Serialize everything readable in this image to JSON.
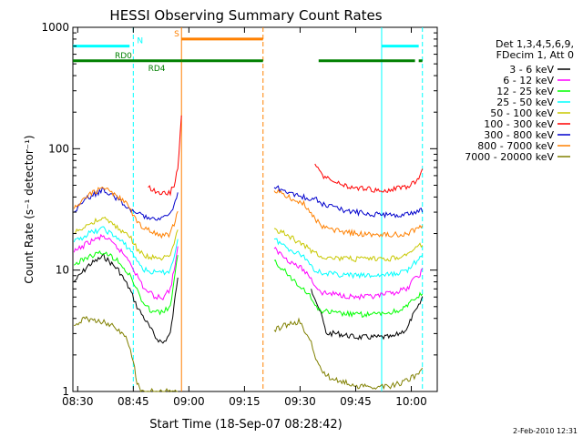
{
  "chart_data": {
    "type": "line",
    "title": "HESSI Observing Summary Count Rates",
    "xlabel": "Start Time (18-Sep-07 08:28:42)",
    "ylabel": "Count Rate (s⁻¹ detector⁻¹)",
    "y_scale": "log",
    "ylim": [
      1,
      1000
    ],
    "xlim": [
      "08:28:42",
      "10:07:00"
    ],
    "x_ticks": [
      "08:30",
      "08:45",
      "09:00",
      "09:15",
      "09:30",
      "09:45",
      "10:00"
    ],
    "y_ticks": [
      "1",
      "10",
      "100",
      "1000"
    ],
    "legend": {
      "placement": "right",
      "header": [
        "Det 1,3,4,5,6,9,",
        "FDecim 1, Att 0"
      ],
      "entries": [
        {
          "label": "3 - 6 keV",
          "color": "#000000"
        },
        {
          "label": "6 - 12 keV",
          "color": "#ff00ff"
        },
        {
          "label": "12 - 25 keV",
          "color": "#00ff00"
        },
        {
          "label": "25 - 50 keV",
          "color": "#00ffff"
        },
        {
          "label": "50 - 100 keV",
          "color": "#c8c800"
        },
        {
          "label": "100 - 300 keV",
          "color": "#ff0000"
        },
        {
          "label": "300 - 800 keV",
          "color": "#0000cc"
        },
        {
          "label": "800 - 7000 keV",
          "color": "#ff8000"
        },
        {
          "label": "7000 - 20000 keV",
          "color": "#808000"
        }
      ]
    },
    "series": [
      {
        "name": "3 - 6 keV",
        "color": "#000000",
        "x": [
          "08:29",
          "08:33",
          "08:37",
          "08:41",
          "08:44",
          "08:46",
          "08:48",
          "08:51",
          "08:53",
          "08:55",
          "08:56",
          "08:57",
          "09:33",
          "09:34",
          "09:36",
          "09:37",
          "09:40",
          "09:45",
          "09:50",
          "09:55",
          "09:59",
          "10:00",
          "10:02",
          "10:03"
        ],
        "y": [
          8,
          11,
          13,
          10,
          7,
          5,
          4,
          2.8,
          2.5,
          3,
          5,
          9,
          7,
          6,
          4,
          3,
          3,
          2.8,
          2.8,
          2.8,
          3.3,
          4,
          5,
          6
        ]
      },
      {
        "name": "6 - 12 keV",
        "color": "#ff00ff",
        "x": [
          "08:29",
          "08:33",
          "08:37",
          "08:41",
          "08:44",
          "08:46",
          "08:48",
          "08:51",
          "08:53",
          "08:55",
          "08:56",
          "08:57",
          "09:23",
          "09:27",
          "09:31",
          "09:33",
          "09:34",
          "09:36",
          "09:40",
          "09:45",
          "09:50",
          "09:55",
          "09:59",
          "10:00",
          "10:02",
          "10:03"
        ],
        "y": [
          14,
          17,
          19,
          15,
          12,
          9,
          7,
          6,
          6,
          7,
          10,
          15,
          15,
          12,
          10,
          8.5,
          7.5,
          6.5,
          6.3,
          6,
          6,
          6.5,
          7,
          8,
          9,
          10
        ]
      },
      {
        "name": "12 - 25 keV",
        "color": "#00ff00",
        "x": [
          "08:29",
          "08:33",
          "08:37",
          "08:41",
          "08:44",
          "08:46",
          "08:48",
          "08:51",
          "08:53",
          "08:55",
          "08:56",
          "08:57",
          "09:23",
          "09:27",
          "09:31",
          "09:33",
          "09:34",
          "09:36",
          "09:40",
          "09:45",
          "09:50",
          "09:55",
          "09:59",
          "10:00",
          "10:02",
          "10:03"
        ],
        "y": [
          11,
          13,
          14,
          12,
          9,
          7,
          5,
          4.5,
          4.5,
          5,
          8,
          13,
          12,
          9,
          7,
          6,
          5,
          4.6,
          4.4,
          4.3,
          4.3,
          4.5,
          5,
          5.5,
          6,
          6.5
        ]
      },
      {
        "name": "25 - 50 keV",
        "color": "#00ffff",
        "x": [
          "08:29",
          "08:33",
          "08:37",
          "08:41",
          "08:44",
          "08:46",
          "08:48",
          "08:51",
          "08:53",
          "08:55",
          "08:56",
          "08:57",
          "09:23",
          "09:27",
          "09:31",
          "09:33",
          "09:34",
          "09:36",
          "09:40",
          "09:45",
          "09:50",
          "09:55",
          "09:59",
          "10:00",
          "10:02",
          "10:03"
        ],
        "y": [
          17,
          20,
          22,
          18,
          15,
          12,
          10,
          9.5,
          9.5,
          10,
          13,
          18,
          18,
          15,
          13,
          11,
          10,
          9.5,
          9.2,
          9,
          9,
          9.2,
          10,
          11,
          12,
          13
        ]
      },
      {
        "name": "50 - 100 keV",
        "color": "#c8c800",
        "x": [
          "08:29",
          "08:33",
          "08:37",
          "08:41",
          "08:44",
          "08:46",
          "08:48",
          "08:51",
          "08:53",
          "08:55",
          "08:56",
          "08:57",
          "09:23",
          "09:27",
          "09:31",
          "09:33",
          "09:34",
          "09:36",
          "09:40",
          "09:45",
          "09:50",
          "09:55",
          "09:59",
          "10:00",
          "10:02",
          "10:03"
        ],
        "y": [
          20,
          24,
          27,
          22,
          19,
          15,
          13,
          12.5,
          12.5,
          13,
          16,
          22,
          22,
          19,
          16,
          14.5,
          14,
          13,
          12.5,
          12.3,
          12.3,
          12.5,
          13.5,
          14.5,
          15.5,
          16.5
        ]
      },
      {
        "name": "100 - 300 keV",
        "color": "#ff0000",
        "x": [
          "08:49",
          "08:51",
          "08:53",
          "08:55",
          "08:56",
          "08:57",
          "08:58",
          "09:34",
          "09:36",
          "09:40",
          "09:45",
          "09:50",
          "09:55",
          "09:59",
          "10:01",
          "10:02",
          "10:03"
        ],
        "y": [
          48,
          45,
          43,
          44,
          50,
          70,
          180,
          75,
          60,
          52,
          47,
          46,
          46,
          49,
          53,
          58,
          65
        ]
      },
      {
        "name": "300 - 800 keV",
        "color": "#0000cc",
        "x": [
          "08:29",
          "08:33",
          "08:37",
          "08:41",
          "08:44",
          "08:46",
          "08:48",
          "08:51",
          "08:53",
          "08:55",
          "08:56",
          "08:57",
          "09:23",
          "09:27",
          "09:31",
          "09:33",
          "09:34",
          "09:36",
          "09:40",
          "09:45",
          "09:50",
          "09:55",
          "09:59",
          "10:00",
          "10:02",
          "10:03"
        ],
        "y": [
          30,
          40,
          46,
          38,
          32,
          29,
          28,
          27,
          27.5,
          29,
          34,
          42,
          48,
          44,
          40,
          36,
          40,
          35,
          32,
          30,
          29,
          28.5,
          29,
          30,
          30.5,
          31
        ]
      },
      {
        "name": "800 - 7000 keV",
        "color": "#ff8000",
        "x": [
          "08:29",
          "08:33",
          "08:37",
          "08:41",
          "08:44",
          "08:46",
          "08:48",
          "08:51",
          "08:53",
          "08:55",
          "08:56",
          "08:57",
          "09:23",
          "09:27",
          "09:31",
          "09:33",
          "09:34",
          "09:36",
          "09:40",
          "09:45",
          "09:50",
          "09:55",
          "09:59",
          "10:00",
          "10:02",
          "10:03"
        ],
        "y": [
          32,
          42,
          48,
          40,
          33,
          25,
          22,
          20,
          19,
          20,
          24,
          30,
          45,
          40,
          35,
          30,
          26,
          23,
          21,
          20,
          19.5,
          19.5,
          20,
          21,
          22,
          23
        ]
      },
      {
        "name": "7000 - 20000 keV",
        "color": "#808000",
        "x": [
          "08:29",
          "08:32",
          "08:36",
          "08:40",
          "08:43",
          "08:45",
          "08:46",
          "08:47",
          "08:50",
          "08:52",
          "08:54",
          "08:56",
          "08:57",
          "09:23",
          "09:26",
          "09:30",
          "09:33",
          "09:35",
          "09:38",
          "09:42",
          "09:46",
          "09:50",
          "09:54",
          "09:58",
          "10:00",
          "10:02",
          "10:03"
        ],
        "y": [
          3.5,
          4,
          3.8,
          3.5,
          2.8,
          1.8,
          1.2,
          1,
          1,
          1,
          1,
          1,
          1,
          3.2,
          3.5,
          3.8,
          2.5,
          1.6,
          1.3,
          1.2,
          1.1,
          1.1,
          1.1,
          1.2,
          1.3,
          1.4,
          1.5
        ]
      }
    ],
    "status_bars": [
      {
        "label": "N",
        "color": "#00ffff",
        "segments": [
          [
            "08:28:42",
            "08:44"
          ],
          [
            "09:52",
            "10:02"
          ]
        ],
        "value": 700
      },
      {
        "label": "S",
        "color": "#ff8000",
        "segments": [
          [
            "08:58",
            "09:20"
          ]
        ],
        "value": 800
      },
      {
        "label": "RD0",
        "color": "#008000",
        "segments": [
          [
            "08:28:42",
            "08:58"
          ],
          [
            "08:58",
            "09:20"
          ],
          [
            "09:35",
            "10:01"
          ],
          [
            "10:02",
            "10:03"
          ]
        ],
        "value": 530
      },
      {
        "label": "RD4",
        "color": "#008000",
        "segments": [],
        "value": 530
      }
    ],
    "vertical_markers": [
      {
        "x": "08:45",
        "color": "#00ffff",
        "style": "dashed"
      },
      {
        "x": "08:58",
        "color": "#ff8000",
        "style": "solid"
      },
      {
        "x": "09:20",
        "color": "#ff8000",
        "style": "dashed"
      },
      {
        "x": "09:52",
        "color": "#00ffff",
        "style": "solid"
      },
      {
        "x": "10:03",
        "color": "#00ffff",
        "style": "dashed"
      }
    ],
    "legend_header_lines": [
      "Det 1,3,4,5,6,9,",
      "FDecim 1, Att 0"
    ]
  },
  "footer": {
    "date_stamp": "2-Feb-2010 12:31"
  }
}
